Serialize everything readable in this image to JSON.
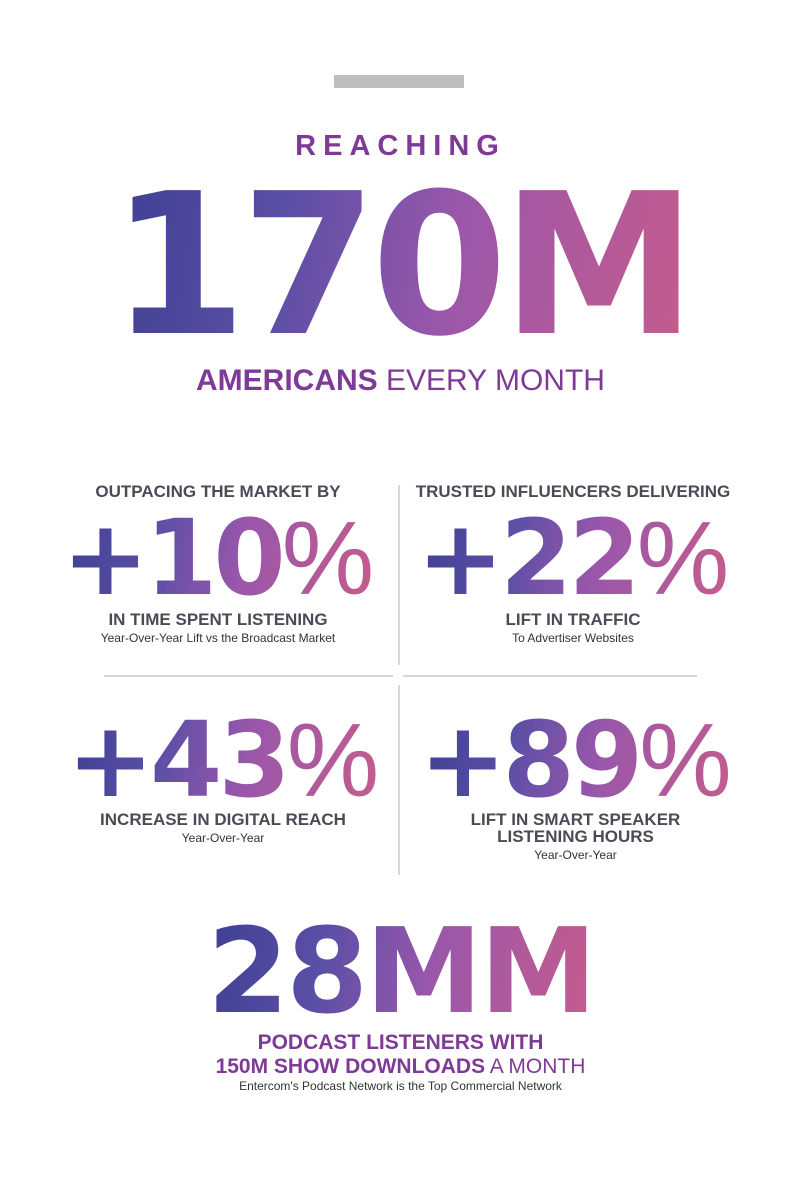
{
  "hero": {
    "kicker": "REACHING",
    "number": "170M",
    "audience_bold": "AMERICANS",
    "audience_rest": " EVERY MONTH"
  },
  "stats": [
    {
      "kicker": "OUTPACING THE MARKET BY",
      "value": "+10",
      "symbol": "%",
      "label_line1": "IN TIME SPENT LISTENING",
      "label_line2": "",
      "sub": "Year-Over-Year Lift vs the Broadcast Market"
    },
    {
      "kicker": "TRUSTED INFLUENCERS DELIVERING",
      "value": "+22",
      "symbol": "%",
      "label_line1": "LIFT IN TRAFFIC",
      "label_line2": "",
      "sub": "To Advertiser Websites"
    },
    {
      "kicker": "",
      "value": "+43",
      "symbol": "%",
      "label_line1": "INCREASE IN DIGITAL REACH",
      "label_line2": "",
      "sub": "Year-Over-Year"
    },
    {
      "kicker": "",
      "value": "+89",
      "symbol": "%",
      "label_line1": "LIFT IN SMART SPEAKER",
      "label_line2": "LISTENING HOURS",
      "sub": "Year-Over-Year"
    }
  ],
  "podcast": {
    "number": "28MM",
    "line1": "PODCAST LISTENERS WITH",
    "line2_bold": "150M SHOW DOWNLOADS",
    "line2_rest": " A MONTH",
    "footnote": "Entercom's Podcast Network is the Top Commercial Network"
  },
  "colors": {
    "accent_purple": "#7e3a96",
    "gradient_start": "#3e3f92",
    "gradient_end": "#c65c8c",
    "text_gray": "#4b4b55"
  }
}
